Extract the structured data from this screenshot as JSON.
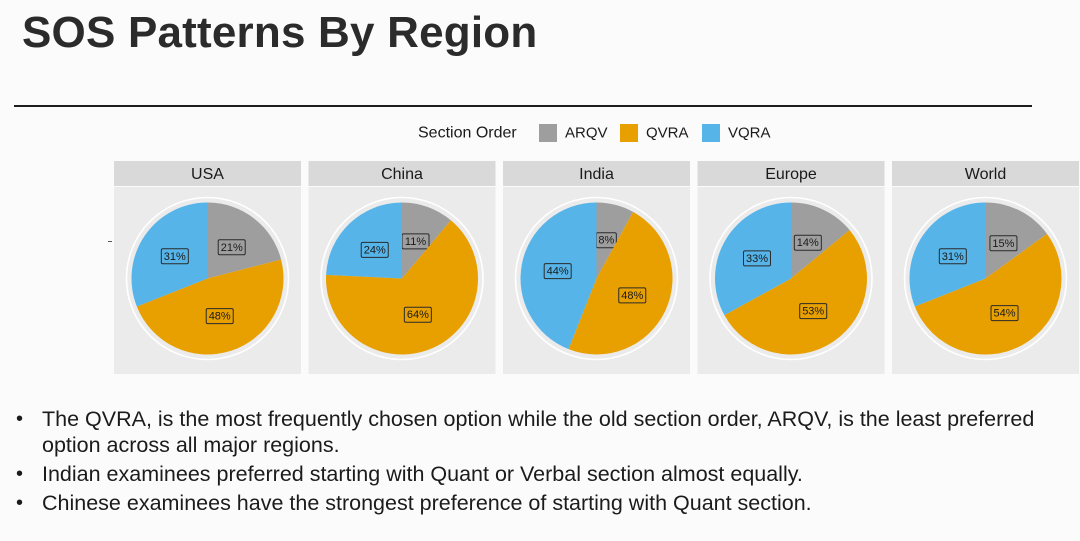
{
  "page": {
    "title": "SOS Patterns By Region"
  },
  "chart_data": {
    "type": "pie",
    "legend_title": "Section Order",
    "legend_position": "top-center",
    "series_names": [
      "ARQV",
      "QVRA",
      "VQRA"
    ],
    "colors": {
      "ARQV": "#9e9e9e",
      "QVRA": "#e8a000",
      "VQRA": "#56b4e9"
    },
    "panels": [
      {
        "region": "USA",
        "values": [
          21,
          48,
          31
        ]
      },
      {
        "region": "China",
        "values": [
          11,
          64,
          24
        ]
      },
      {
        "region": "India",
        "values": [
          8,
          48,
          44
        ]
      },
      {
        "region": "Europe",
        "values": [
          14,
          53,
          33
        ]
      },
      {
        "region": "World",
        "values": [
          15,
          54,
          31
        ]
      }
    ]
  },
  "bullets": [
    "The QVRA, is the most frequently chosen option while the old section order, ARQV, is the least preferred option across all major regions.",
    "Indian examinees preferred starting with Quant or Verbal section almost equally.",
    "Chinese examinees have the strongest preference of starting with Quant section."
  ]
}
